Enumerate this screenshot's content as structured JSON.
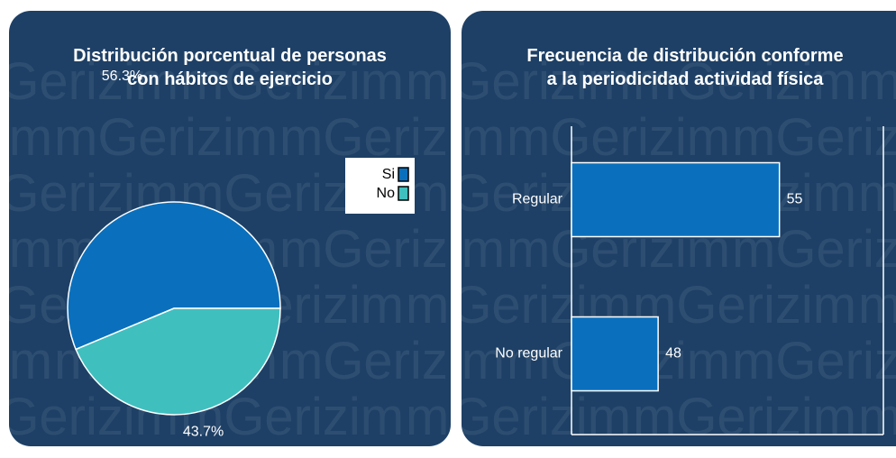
{
  "watermark": "mGerizim",
  "chart_data": [
    {
      "type": "pie",
      "title": "Distribución porcentual de personas con hábitos de ejercicio",
      "categories": [
        "Si",
        "No"
      ],
      "values": [
        56.3,
        43.7
      ],
      "value_labels": [
        "56.3%",
        "43.7%"
      ],
      "colors": [
        "#0a70bd",
        "#40bfbf"
      ],
      "legend": "upper right"
    },
    {
      "type": "barh",
      "title": "Frecuencia de distribución conforme a la periodicidad actividad física",
      "categories": [
        "Regular",
        "No regular"
      ],
      "values": [
        55,
        48
      ],
      "color": "#0a70bd",
      "xlim": [
        43,
        61
      ]
    }
  ]
}
